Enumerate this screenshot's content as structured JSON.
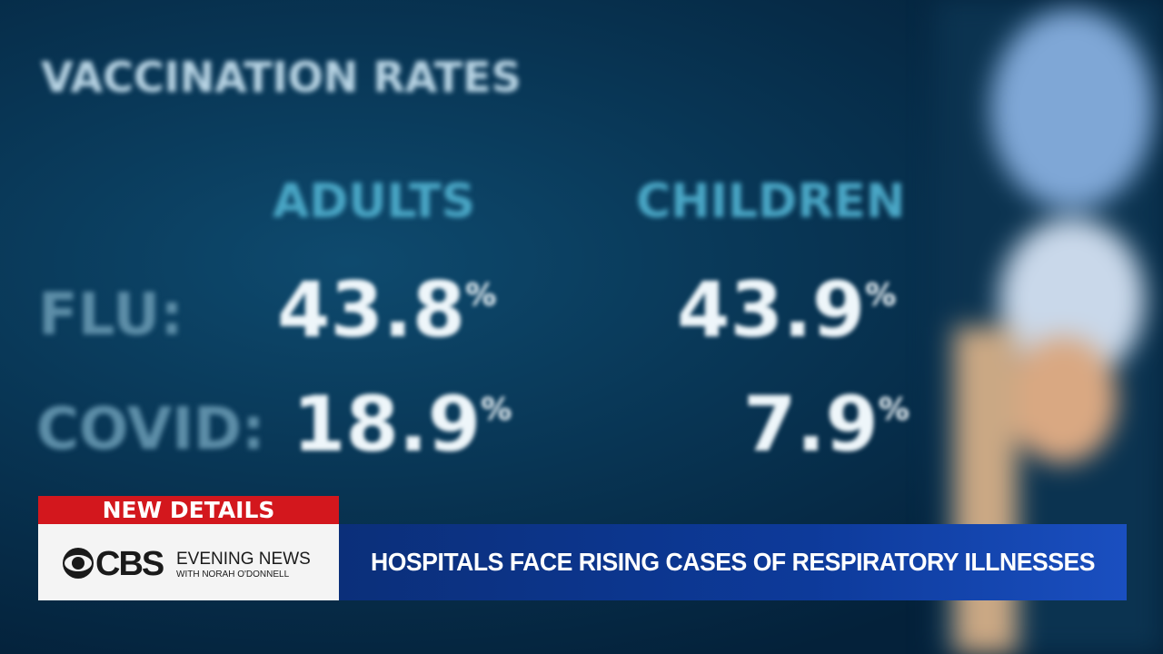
{
  "graphic": {
    "title": "VACCINATION RATES",
    "columns": [
      "ADULTS",
      "CHILDREN"
    ],
    "rows": [
      {
        "label": "FLU:",
        "cells": [
          {
            "value": "43.8",
            "unit": "%"
          },
          {
            "value": "43.9",
            "unit": "%"
          }
        ]
      },
      {
        "label": "COVID:",
        "cells": [
          {
            "value": "18.9",
            "unit": "%"
          },
          {
            "value": "7.9",
            "unit": "%"
          }
        ]
      }
    ]
  },
  "lower_third": {
    "tag": "NEW DETAILS",
    "network": "CBS",
    "show": "EVENING NEWS",
    "anchor": "WITH NORAH O'DONNELL",
    "headline": "HOSPITALS FACE RISING CASES OF RESPIRATORY ILLNESSES"
  }
}
